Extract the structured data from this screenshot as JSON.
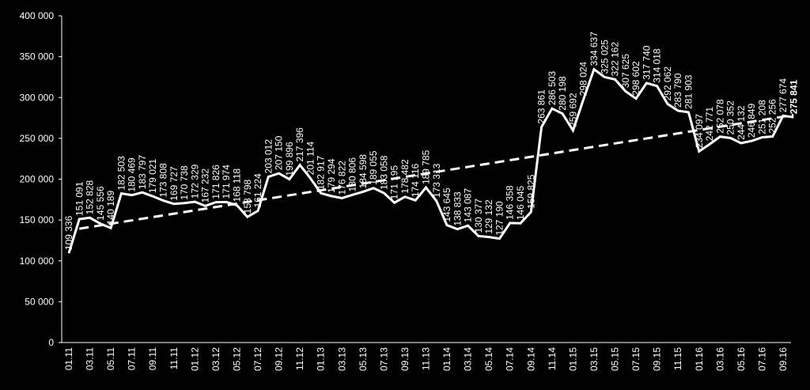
{
  "chart_data": {
    "type": "line",
    "color": "#ffffff",
    "trendline": true,
    "categories": [
      "01.11",
      null,
      "03.11",
      null,
      "05.11",
      null,
      "07.11",
      null,
      "09.11",
      null,
      "11.11",
      null,
      "01.12",
      null,
      "03.12",
      null,
      "05.12",
      null,
      "07.12",
      null,
      "09.12",
      null,
      "11.12",
      null,
      "01.13",
      null,
      "03.13",
      null,
      "05.13",
      null,
      "07.13",
      null,
      "09.13",
      null,
      "11.13",
      null,
      "01.14",
      null,
      "03.14",
      null,
      "05.14",
      null,
      "07.14",
      null,
      "09.14",
      null,
      "11.14",
      null,
      "01.15",
      null,
      "03.15",
      null,
      "05.15",
      null,
      "07.15",
      null,
      "09.15",
      null,
      "11.15",
      null,
      "01.16",
      null,
      "03.16",
      null,
      "05.16",
      null,
      "07.16",
      null,
      "09.16",
      null
    ],
    "values": [
      109336,
      151091,
      152828,
      145556,
      140189,
      182503,
      180469,
      183797,
      179021,
      173808,
      169727,
      170738,
      172329,
      167232,
      171826,
      171974,
      168118,
      153798,
      161224,
      203012,
      207150,
      199896,
      217396,
      201114,
      182917,
      179294,
      176822,
      180806,
      184598,
      189055,
      183058,
      171195,
      178482,
      174116,
      189785,
      173313,
      143645,
      138833,
      143087,
      130377,
      129132,
      127190,
      146358,
      146045,
      159825,
      263861,
      286503,
      280198,
      259692,
      298024,
      334637,
      325025,
      322162,
      307625,
      298602,
      317740,
      314018,
      292062,
      283790,
      281903,
      234097,
      242771,
      252078,
      250352,
      244132,
      246849,
      251208,
      252256,
      277674,
      275841
    ],
    "value_labels": [
      "109 336",
      "151 091",
      "152 828",
      "145 556",
      "140 189",
      "182 503",
      "180 469",
      "183 797",
      "179 021",
      "173 808",
      "169 727",
      "170 738",
      "172 329",
      "167 232",
      "171 826",
      "171 974",
      "168 118",
      "153 798",
      "161 224",
      "203 012",
      "207 150",
      "199 896",
      "217 396",
      "201 114",
      "182 917",
      "179 294",
      "176 822",
      "180 806",
      "184 598",
      "189 055",
      "183 058",
      "171 195",
      "178 482",
      "174 116",
      "189 785",
      "173 313",
      "143 645",
      "138 833",
      "143 087",
      "130 377",
      "129 132",
      "127 190",
      "146 358",
      "146 045",
      "159 825",
      "263 861",
      "286 503",
      "280 198",
      "259 692",
      "298 024",
      "334 637",
      "325 025",
      "322 162",
      "307 625",
      "298 602",
      "317 740",
      "314 018",
      "292 062",
      "283 790",
      "281 903",
      "234 097",
      "242 771",
      "252 078",
      "250 352",
      "244 132",
      "246 849",
      "251 208",
      "252 256",
      "277 674",
      "275 841"
    ],
    "ylim": [
      0,
      400000
    ],
    "yticks": [
      {
        "value": 0,
        "label": "0"
      },
      {
        "value": 50000,
        "label": "50 000"
      },
      {
        "value": 100000,
        "label": "100 000"
      },
      {
        "value": 150000,
        "label": "150 000"
      },
      {
        "value": 200000,
        "label": "200 000"
      },
      {
        "value": 250000,
        "label": "250 000"
      },
      {
        "value": 300000,
        "label": "300 000"
      },
      {
        "value": 350000,
        "label": "350 000"
      },
      {
        "value": 400000,
        "label": "400 000"
      }
    ]
  }
}
